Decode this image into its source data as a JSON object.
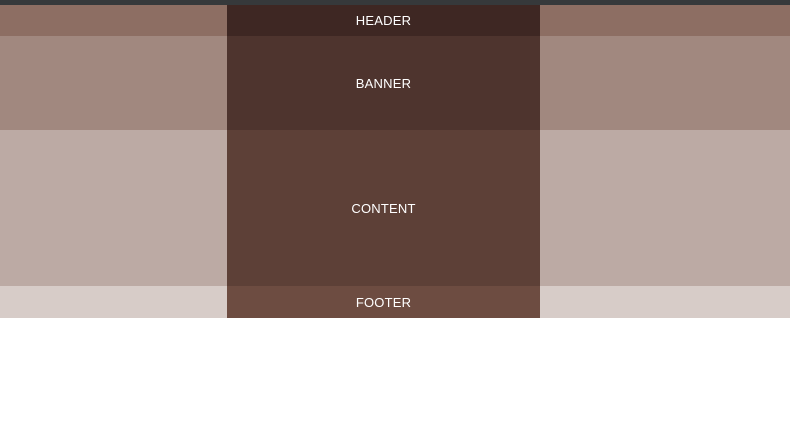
{
  "layout_regions": {
    "header_label": "HEADER",
    "banner_label": "BANNER",
    "content_label": "CONTENT",
    "footer_label": "FOOTER"
  },
  "colors": {
    "topbar": "#36393b",
    "header_side": "#8d6e63",
    "header_center": "#3e2723",
    "banner_side": "#a1887f",
    "banner_center": "#4e342e",
    "content_side": "#bcaaa4",
    "content_center": "#5d4037",
    "footer_side": "#d7ccc8",
    "footer_center": "#6d4c41",
    "text": "#ffffff",
    "background": "#ffffff"
  }
}
